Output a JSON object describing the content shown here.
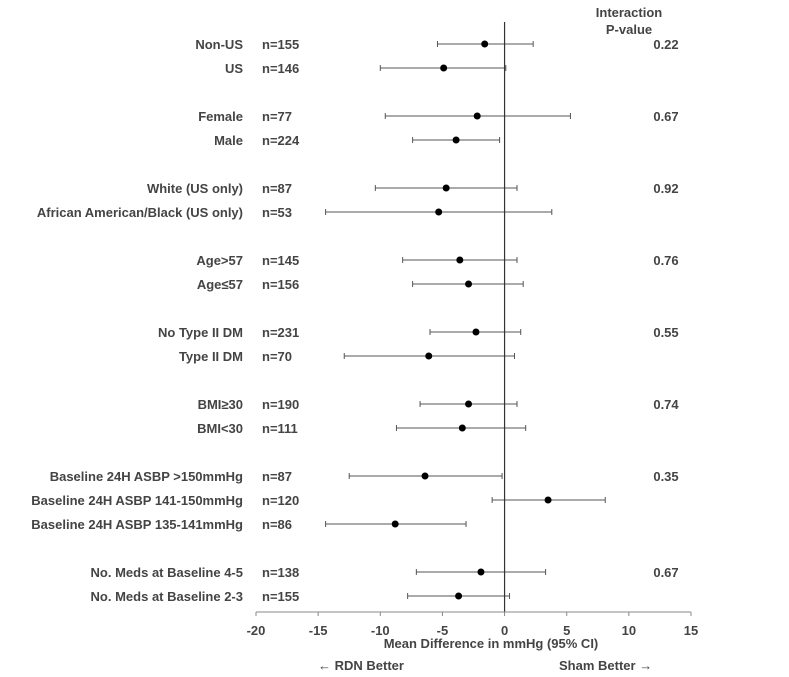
{
  "chart_data": {
    "type": "forest",
    "header": {
      "line1": "Interaction",
      "line2": "P-value"
    },
    "xlabel": "Mean Difference in mmHg (95% CI)",
    "xlim": [
      -20,
      15
    ],
    "xticks": [
      "-20",
      "-15",
      "-10",
      "-5",
      "0",
      "5",
      "10",
      "15"
    ],
    "favors_left": "← RDN Better",
    "favors_right": "Sham Better →",
    "groups": [
      {
        "pvalue": "0.22",
        "rows": [
          {
            "label": "Non-US",
            "n": "n=155",
            "mean": -1.6,
            "lo": -5.4,
            "hi": 2.3
          },
          {
            "label": "US",
            "n": "n=146",
            "mean": -4.9,
            "lo": -10.0,
            "hi": 0.1
          }
        ]
      },
      {
        "pvalue": "0.67",
        "rows": [
          {
            "label": "Female",
            "n": "n=77",
            "mean": -2.2,
            "lo": -9.6,
            "hi": 5.3
          },
          {
            "label": "Male",
            "n": "n=224",
            "mean": -3.9,
            "lo": -7.4,
            "hi": -0.4
          }
        ]
      },
      {
        "pvalue": "0.92",
        "rows": [
          {
            "label": "White (US only)",
            "n": "n=87",
            "mean": -4.7,
            "lo": -10.4,
            "hi": 1.0
          },
          {
            "label": "African American/Black (US only)",
            "n": "n=53",
            "mean": -5.3,
            "lo": -14.4,
            "hi": 3.8
          }
        ]
      },
      {
        "pvalue": "0.76",
        "rows": [
          {
            "label": "Age>57",
            "n": "n=145",
            "mean": -3.6,
            "lo": -8.2,
            "hi": 1.0
          },
          {
            "label": "Age≤57",
            "n": "n=156",
            "mean": -2.9,
            "lo": -7.4,
            "hi": 1.5
          }
        ]
      },
      {
        "pvalue": "0.55",
        "rows": [
          {
            "label": "No Type II DM",
            "n": "n=231",
            "mean": -2.3,
            "lo": -6.0,
            "hi": 1.3
          },
          {
            "label": "Type II DM",
            "n": "n=70",
            "mean": -6.1,
            "lo": -12.9,
            "hi": 0.8
          }
        ]
      },
      {
        "pvalue": "0.74",
        "rows": [
          {
            "label": "BMI≥30",
            "n": "n=190",
            "mean": -2.9,
            "lo": -6.8,
            "hi": 1.0
          },
          {
            "label": "BMI<30",
            "n": "n=111",
            "mean": -3.4,
            "lo": -8.7,
            "hi": 1.7
          }
        ]
      },
      {
        "pvalue": "0.35",
        "rows": [
          {
            "label": "Baseline 24H ASBP >150mmHg",
            "n": "n=87",
            "mean": -6.4,
            "lo": -12.5,
            "hi": -0.2
          },
          {
            "label": "Baseline 24H ASBP 141-150mmHg",
            "n": "n=120",
            "mean": 3.5,
            "lo": -1.0,
            "hi": 8.1
          },
          {
            "label": "Baseline 24H ASBP 135-141mmHg",
            "n": "n=86",
            "mean": -8.8,
            "lo": -14.4,
            "hi": -3.1
          }
        ]
      },
      {
        "pvalue": "0.67",
        "rows": [
          {
            "label": "No. Meds at Baseline 4-5",
            "n": "n=138",
            "mean": -1.9,
            "lo": -7.1,
            "hi": 3.3
          },
          {
            "label": "No. Meds at Baseline 2-3",
            "n": "n=155",
            "mean": -3.7,
            "lo": -7.8,
            "hi": 0.4
          }
        ]
      }
    ]
  }
}
